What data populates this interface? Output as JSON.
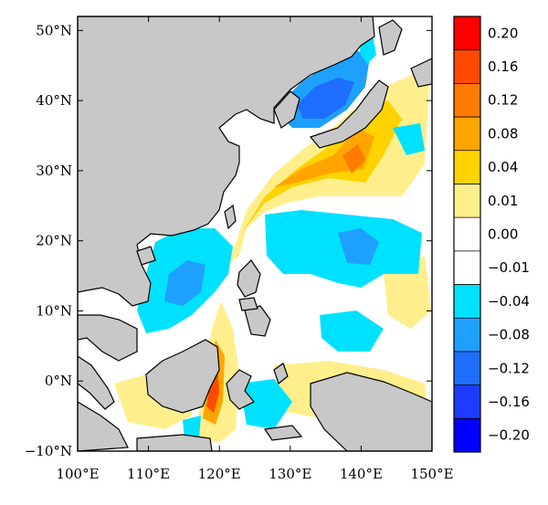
{
  "map": {
    "lon_range": [
      100,
      150
    ],
    "lat_range": [
      -10,
      52
    ],
    "x_ticks": [
      {
        "value": 100,
        "label": "100°E"
      },
      {
        "value": 110,
        "label": "110°E"
      },
      {
        "value": 120,
        "label": "120°E"
      },
      {
        "value": 130,
        "label": "130°E"
      },
      {
        "value": 140,
        "label": "140°E"
      },
      {
        "value": 150,
        "label": "150°E"
      }
    ],
    "y_ticks": [
      {
        "value": 50,
        "label": "50°N"
      },
      {
        "value": 40,
        "label": "40°N"
      },
      {
        "value": 30,
        "label": "30°N"
      },
      {
        "value": 20,
        "label": "20°N"
      },
      {
        "value": 10,
        "label": "10°N"
      },
      {
        "value": 0,
        "label": "0°N"
      },
      {
        "value": -10,
        "label": "−10°N"
      }
    ],
    "land_color": "#c8c8c8"
  },
  "colorbar": {
    "labels": [
      "0.20",
      "0.16",
      "0.12",
      "0.08",
      "0.04",
      "0.01",
      "0.00",
      "−0.01",
      "−0.04",
      "−0.08",
      "−0.12",
      "−0.16",
      "−0.20"
    ],
    "colors": [
      "#ff0000",
      "#ff4a00",
      "#ff7a00",
      "#ffa500",
      "#ffd200",
      "#ffef8c",
      "#ffffff",
      "#ffffff",
      "#00e1ff",
      "#1ea0ff",
      "#1e6eff",
      "#1e3cff",
      "#0000ff"
    ]
  }
}
